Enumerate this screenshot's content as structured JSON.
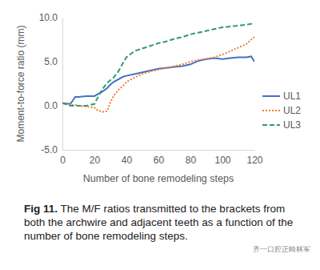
{
  "chart_data": {
    "type": "line",
    "caption_label": "Fig 11.",
    "caption": "The M/F ratios transmitted to the brackets from both the archwire and adjacent teeth as a function of the number of bone remodeling steps.",
    "annotations": [
      "齐一口腔正畸林军"
    ],
    "x_label": "Number of bone remodeling steps",
    "y_label": "Moment-to-force ratio (mm)",
    "x": [
      0,
      5,
      8,
      10,
      15,
      20,
      22,
      25,
      28,
      30,
      32,
      35,
      38,
      40,
      45,
      50,
      55,
      60,
      65,
      70,
      75,
      80,
      85,
      90,
      95,
      100,
      105,
      110,
      115,
      118,
      120
    ],
    "series": [
      {
        "name": "UL1",
        "color": "#4472c4",
        "line_style": "solid",
        "values": [
          0.3,
          0.2,
          1.0,
          1.0,
          1.1,
          1.1,
          1.3,
          1.6,
          2.0,
          2.4,
          2.7,
          3.0,
          3.3,
          3.4,
          3.6,
          3.8,
          4.0,
          4.2,
          4.3,
          4.4,
          4.5,
          4.7,
          5.1,
          5.3,
          5.4,
          5.3,
          5.4,
          5.5,
          5.5,
          5.6,
          5.0
        ]
      },
      {
        "name": "UL2",
        "color": "#ed7d31",
        "line_style": "dotted",
        "values": [
          0.3,
          0.1,
          0.1,
          0.0,
          -0.1,
          -0.2,
          -0.5,
          -0.7,
          -0.6,
          0.4,
          1.1,
          1.8,
          2.3,
          2.7,
          3.2,
          3.6,
          3.9,
          4.1,
          4.3,
          4.5,
          4.7,
          5.0,
          5.2,
          5.3,
          5.5,
          5.8,
          6.2,
          6.6,
          7.0,
          7.5,
          7.8
        ]
      },
      {
        "name": "UL3",
        "color": "#339a73",
        "line_style": "dashed",
        "values": [
          0.3,
          0.0,
          0.0,
          0.0,
          0.0,
          0.2,
          0.9,
          1.9,
          2.6,
          2.9,
          3.2,
          3.9,
          4.9,
          5.5,
          6.2,
          6.5,
          6.8,
          7.1,
          7.3,
          7.6,
          7.8,
          8.1,
          8.3,
          8.5,
          8.7,
          8.9,
          9.0,
          9.1,
          9.2,
          9.3,
          9.3
        ]
      }
    ],
    "xlim": [
      0,
      120
    ],
    "xticks": [
      0,
      20,
      40,
      60,
      80,
      100,
      120
    ],
    "ylim": [
      -5,
      10
    ],
    "yticks": [
      {
        "value": -5,
        "label": "-5.0"
      },
      {
        "value": 0,
        "label": "0.0"
      },
      {
        "value": 5,
        "label": "5.0"
      },
      {
        "value": 10,
        "label": "10.0"
      }
    ],
    "grid": false,
    "legend": "right"
  }
}
